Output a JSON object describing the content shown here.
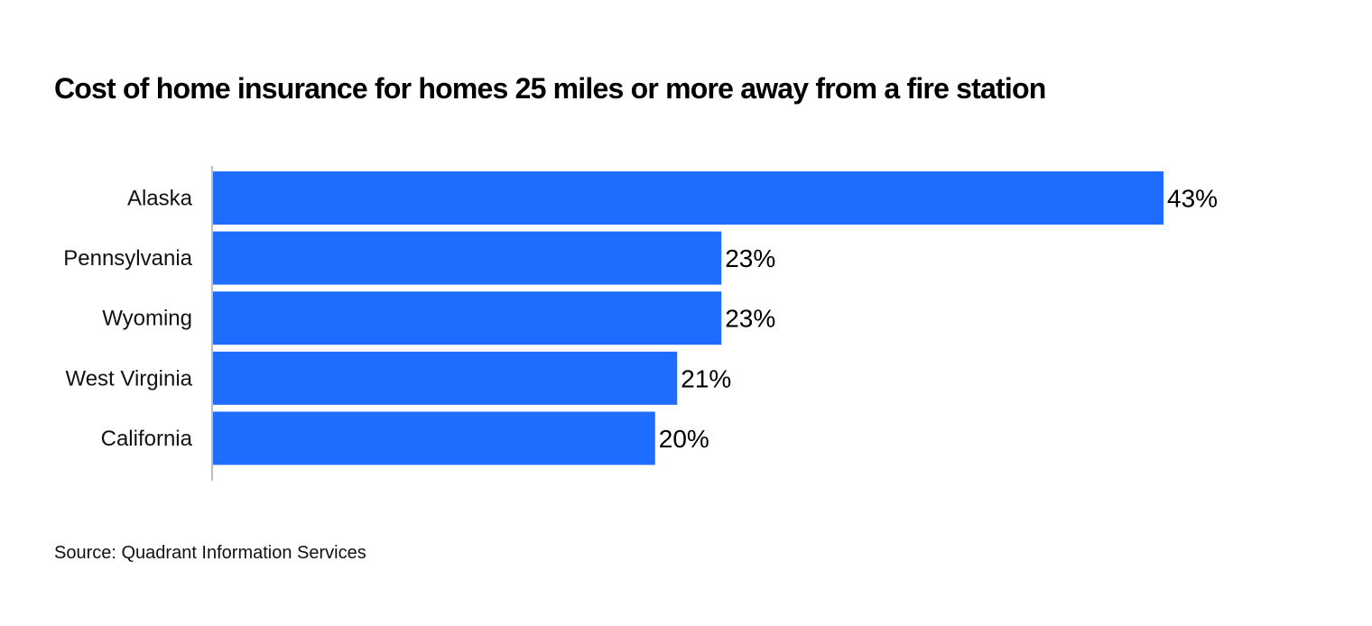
{
  "chart_data": {
    "type": "bar",
    "orientation": "horizontal",
    "title": "Cost of home insurance for homes 25 miles or more away from a fire station",
    "categories": [
      "Alaska",
      "Pennsylvania",
      "Wyoming",
      "West Virginia",
      "California"
    ],
    "values": [
      43,
      23,
      23,
      21,
      20
    ],
    "value_labels": [
      "43%",
      "23%",
      "23%",
      "21%",
      "20%"
    ],
    "xlim": [
      0,
      43
    ],
    "grid": false,
    "bar_color": "#1f6dff",
    "axis_color": "#bdbdbd"
  },
  "source": "Source: Quadrant Information Services"
}
